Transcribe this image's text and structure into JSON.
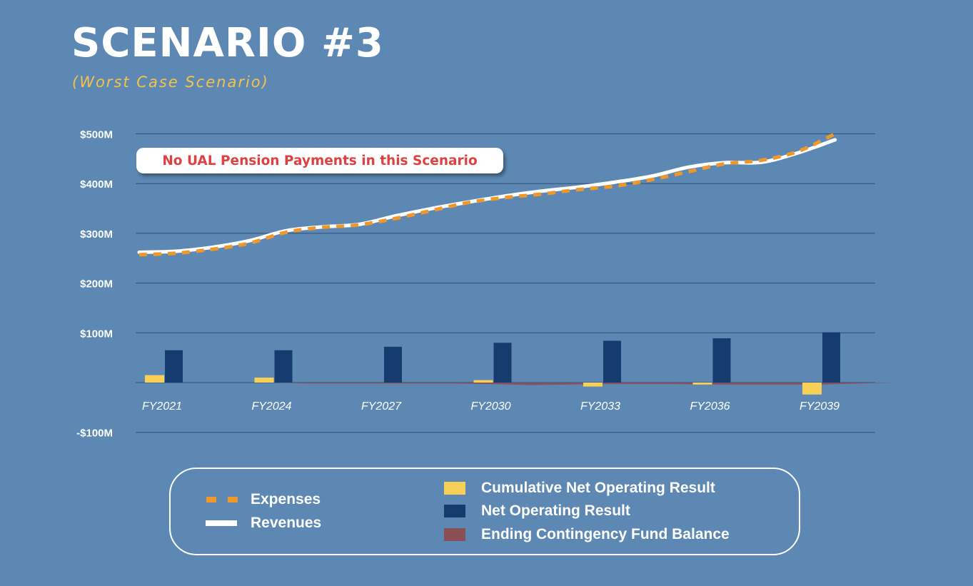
{
  "title": "SCENARIO #3",
  "subtitle": "(Worst Case Scenario)",
  "callout": "No UAL Pension Payments in this Scenario",
  "colors": {
    "background": "#5d88b3",
    "expenses": "#f0972a",
    "revenues": "#ffffff",
    "cumulative": "#f9d057",
    "net": "#163b6e",
    "contingency": "#8a4e55",
    "gridline": "#2f4f78"
  },
  "legend": {
    "expenses": "Expenses",
    "revenues": "Revenues",
    "cumulative": "Cumulative Net Operating Result",
    "net": "Net Operating Result",
    "contingency": "Ending Contingency Fund Balance"
  },
  "chart_data": {
    "type": "bar",
    "y_ticks": [
      500,
      400,
      300,
      200,
      100,
      -100
    ],
    "y_tick_labels": [
      "$500M",
      "$400M",
      "$300M",
      "$200M",
      "$100M",
      "-$100M"
    ],
    "ylim": [
      -100,
      500
    ],
    "x_tick_labels": [
      "FY2021",
      "FY2024",
      "FY2027",
      "FY2030",
      "FY2033",
      "FY2036",
      "FY2039"
    ],
    "bar_groups": [
      "FY2021",
      "FY2024",
      "FY2027",
      "FY2030",
      "FY2033",
      "FY2036",
      "FY2039"
    ],
    "series": [
      {
        "name": "Cumulative Net Operating Result",
        "kind": "bar",
        "values": [
          15,
          10,
          0,
          5,
          -8,
          -4,
          -24
        ]
      },
      {
        "name": "Net Operating Result",
        "kind": "bar",
        "values": [
          65,
          65,
          72,
          80,
          84,
          89,
          101
        ]
      },
      {
        "name": "Ending Contingency Fund Balance",
        "kind": "area",
        "x": [
          2021,
          2024,
          2025,
          2027,
          2029,
          2030,
          2031,
          2033,
          2035,
          2036,
          2038,
          2039,
          2041
        ],
        "values": [
          0,
          0,
          -2,
          -2,
          -2,
          -3,
          -5,
          -3,
          -3,
          -4,
          -4,
          -4,
          0
        ]
      },
      {
        "name": "Revenues",
        "kind": "line",
        "x": [
          2021,
          2022,
          2023,
          2024,
          2025,
          2026,
          2027,
          2028,
          2029,
          2030,
          2031,
          2032,
          2033,
          2034,
          2035,
          2036,
          2037,
          2038,
          2039,
          2040
        ],
        "values": [
          262,
          264,
          272,
          285,
          305,
          313,
          318,
          335,
          350,
          363,
          375,
          385,
          393,
          403,
          415,
          433,
          442,
          443,
          462,
          488
        ]
      },
      {
        "name": "Expenses",
        "kind": "line",
        "x": [
          2021,
          2022,
          2023,
          2024,
          2025,
          2026,
          2027,
          2028,
          2029,
          2030,
          2031,
          2032,
          2033,
          2034,
          2035,
          2036,
          2037,
          2038,
          2039,
          2040
        ],
        "values": [
          257,
          260,
          268,
          280,
          302,
          312,
          317,
          330,
          346,
          362,
          372,
          379,
          388,
          395,
          408,
          424,
          440,
          447,
          465,
          500
        ]
      }
    ]
  }
}
